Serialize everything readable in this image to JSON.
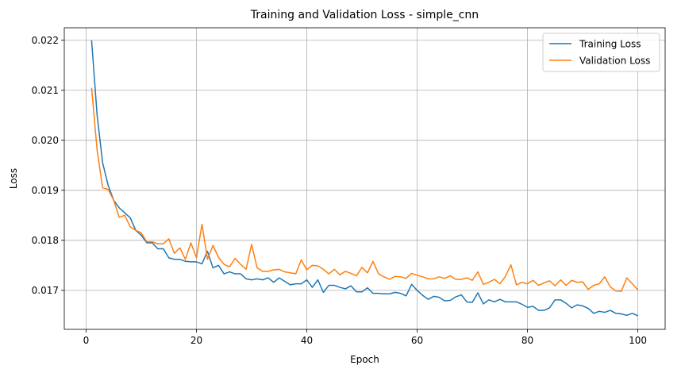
{
  "chart_data": {
    "type": "line",
    "title": "Training and Validation Loss - simple_cnn",
    "xlabel": "Epoch",
    "ylabel": "Loss",
    "xlim": [
      -3.95,
      104.95
    ],
    "ylim": [
      0.01622,
      0.02225
    ],
    "xticks": [
      0,
      20,
      40,
      60,
      80,
      100
    ],
    "yticks": [
      0.017,
      0.018,
      0.019,
      0.02,
      0.021,
      0.022
    ],
    "ytick_labels": [
      "0.017",
      "0.018",
      "0.019",
      "0.020",
      "0.021",
      "0.022"
    ],
    "grid": true,
    "legend_position": "top-right",
    "x": [
      1,
      2,
      3,
      4,
      5,
      6,
      7,
      8,
      9,
      10,
      11,
      12,
      13,
      14,
      15,
      16,
      17,
      18,
      19,
      20,
      21,
      22,
      23,
      24,
      25,
      26,
      27,
      28,
      29,
      30,
      31,
      32,
      33,
      34,
      35,
      36,
      37,
      38,
      39,
      40,
      41,
      42,
      43,
      44,
      45,
      46,
      47,
      48,
      49,
      50,
      51,
      52,
      53,
      54,
      55,
      56,
      57,
      58,
      59,
      60,
      61,
      62,
      63,
      64,
      65,
      66,
      67,
      68,
      69,
      70,
      71,
      72,
      73,
      74,
      75,
      76,
      77,
      78,
      79,
      80,
      81,
      82,
      83,
      84,
      85,
      86,
      87,
      88,
      89,
      90,
      91,
      92,
      93,
      94,
      95,
      96,
      97,
      98,
      99,
      100
    ],
    "series": [
      {
        "name": "Training Loss",
        "color": "#1f77b4",
        "values": [
          0.022,
          0.0205,
          0.01955,
          0.0191,
          0.0188,
          0.01865,
          0.01855,
          0.01845,
          0.0182,
          0.0181,
          0.01795,
          0.01795,
          0.01783,
          0.01783,
          0.01765,
          0.01762,
          0.01762,
          0.01758,
          0.01757,
          0.01757,
          0.01753,
          0.01778,
          0.01745,
          0.0175,
          0.01733,
          0.01737,
          0.01733,
          0.01733,
          0.01723,
          0.01721,
          0.01723,
          0.01721,
          0.01725,
          0.01716,
          0.01725,
          0.01718,
          0.01711,
          0.01713,
          0.01713,
          0.01721,
          0.01706,
          0.01721,
          0.01696,
          0.0171,
          0.0171,
          0.01706,
          0.01703,
          0.01709,
          0.01697,
          0.01697,
          0.01705,
          0.01694,
          0.01694,
          0.01693,
          0.01693,
          0.01696,
          0.01694,
          0.01689,
          0.01712,
          0.017,
          0.0169,
          0.01682,
          0.01688,
          0.01686,
          0.01679,
          0.0168,
          0.01687,
          0.01691,
          0.01677,
          0.01676,
          0.01695,
          0.01673,
          0.01681,
          0.01677,
          0.01682,
          0.01677,
          0.01677,
          0.01677,
          0.01672,
          0.01666,
          0.01668,
          0.0166,
          0.0166,
          0.01665,
          0.01681,
          0.01681,
          0.01674,
          0.01665,
          0.01671,
          0.01669,
          0.01664,
          0.01654,
          0.01658,
          0.01656,
          0.0166,
          0.01654,
          0.01653,
          0.0165,
          0.01654,
          0.01649
        ]
      },
      {
        "name": "Validation Loss",
        "color": "#ff7f0e",
        "values": [
          0.02105,
          0.0198,
          0.01905,
          0.01902,
          0.0188,
          0.01846,
          0.0185,
          0.01827,
          0.0182,
          0.01815,
          0.01797,
          0.01797,
          0.01793,
          0.01793,
          0.01803,
          0.01774,
          0.01785,
          0.01762,
          0.01795,
          0.01765,
          0.01832,
          0.01762,
          0.0179,
          0.01766,
          0.01752,
          0.01747,
          0.01764,
          0.01752,
          0.01742,
          0.01792,
          0.01745,
          0.01738,
          0.01738,
          0.01741,
          0.01742,
          0.01737,
          0.01735,
          0.01733,
          0.01761,
          0.01741,
          0.0175,
          0.01749,
          0.01742,
          0.01733,
          0.01742,
          0.01731,
          0.01738,
          0.01734,
          0.01729,
          0.01746,
          0.01735,
          0.01758,
          0.01733,
          0.01727,
          0.01722,
          0.01728,
          0.01727,
          0.01724,
          0.01734,
          0.0173,
          0.01727,
          0.01723,
          0.01723,
          0.01727,
          0.01724,
          0.01729,
          0.01722,
          0.01722,
          0.01725,
          0.0172,
          0.01737,
          0.01712,
          0.01716,
          0.01722,
          0.01713,
          0.01728,
          0.01751,
          0.01711,
          0.01716,
          0.01713,
          0.0172,
          0.0171,
          0.01715,
          0.01719,
          0.01709,
          0.01721,
          0.0171,
          0.0172,
          0.01716,
          0.01717,
          0.01702,
          0.0171,
          0.01713,
          0.01727,
          0.01707,
          0.01699,
          0.01698,
          0.01725,
          0.01713,
          0.01701
        ]
      }
    ]
  }
}
